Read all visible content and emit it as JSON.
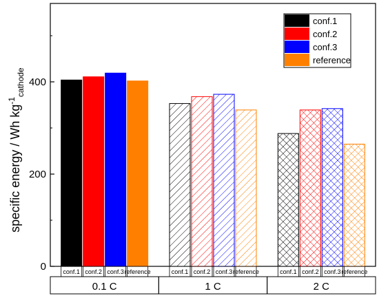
{
  "chart_data": {
    "type": "bar",
    "ylabel_main": "specific energy / Wh kg",
    "ylabel_sup": "-1",
    "ylabel_sub": "cathode",
    "ylim": [
      0,
      570
    ],
    "yticks": [
      0,
      200,
      400
    ],
    "groups": [
      {
        "label": "0.1 C",
        "pattern": "solid",
        "categories": [
          "conf.1",
          "conf.2",
          "conf.3",
          "reference"
        ],
        "values": [
          404,
          411,
          419,
          402
        ]
      },
      {
        "label": "1 C",
        "pattern": "hatch",
        "categories": [
          "conf.1",
          "conf.2",
          "conf.3",
          "reference"
        ],
        "values": [
          353,
          368,
          373,
          339
        ]
      },
      {
        "label": "2 C",
        "pattern": "crosshatch",
        "categories": [
          "conf.1",
          "conf.2",
          "conf.3",
          "reference"
        ],
        "values": [
          288,
          339,
          342,
          265
        ]
      }
    ],
    "series": [
      {
        "name": "conf.1",
        "color": "#000000"
      },
      {
        "name": "conf.2",
        "color": "#ff0000"
      },
      {
        "name": "conf.3",
        "color": "#0000ff"
      },
      {
        "name": "reference",
        "color": "#ff8000"
      }
    ],
    "legend_position": "top-right",
    "grid": false
  }
}
